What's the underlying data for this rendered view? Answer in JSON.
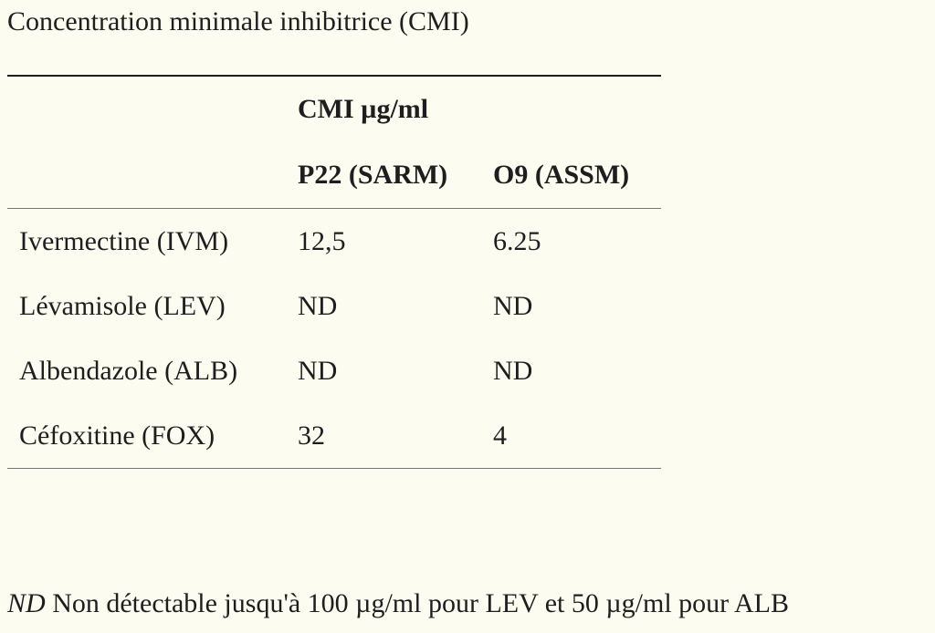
{
  "caption": "Concentration minimale inhibitrice (CMI)",
  "table": {
    "group_header": "CMI µg/ml",
    "columns": [
      "",
      "P22 (SARM)",
      "O9 (ASSM)"
    ],
    "rows": [
      {
        "drug": "Ivermectine (IVM)",
        "p22": "12,5",
        "o9": "6.25"
      },
      {
        "drug": "Lévamisole (LEV)",
        "p22": "ND",
        "o9": "ND"
      },
      {
        "drug": "Albendazole (ALB)",
        "p22": "ND",
        "o9": "ND"
      },
      {
        "drug": "Céfoxitine (FOX)",
        "p22": "32",
        "o9": "4"
      }
    ]
  },
  "footnote": {
    "abbr": "ND",
    "text": "Non détectable jusqu'à 100 µg/ml pour LEV et 50 µg/ml pour ALB"
  }
}
